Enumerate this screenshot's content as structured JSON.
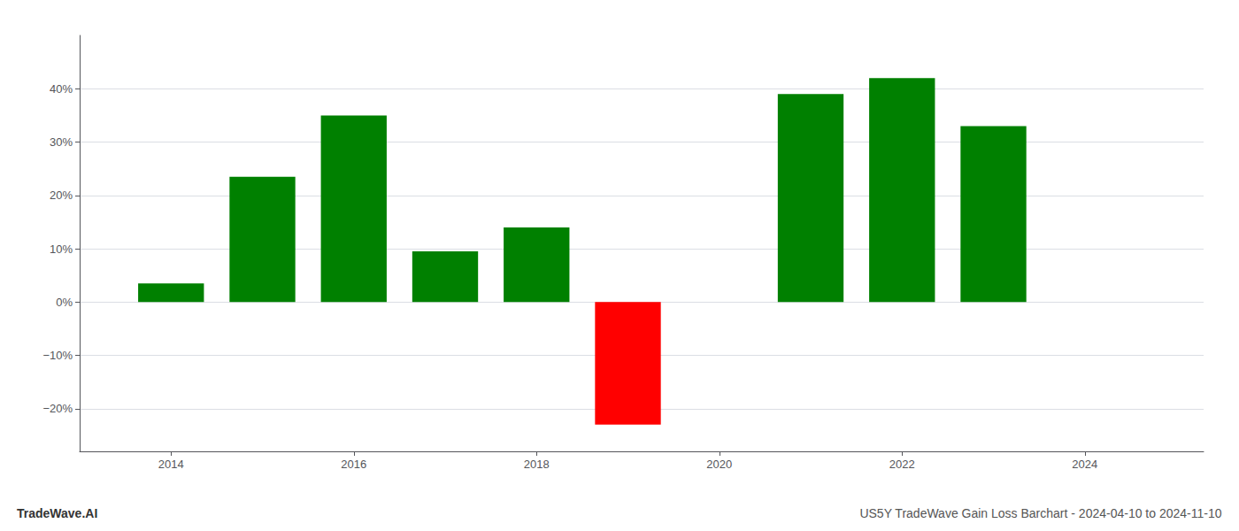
{
  "chart_data": {
    "type": "bar",
    "title": "TradeWave.AI",
    "subtitle": "US5Y TradeWave Gain Loss Barchart - 2024-04-10 to 2024-11-10",
    "x": [
      2014,
      2015,
      2016,
      2017,
      2018,
      2019,
      2021,
      2022,
      2023
    ],
    "values": [
      3.5,
      23.5,
      35.0,
      9.5,
      14.0,
      -23.0,
      39.0,
      42.0,
      33.0
    ],
    "colors": [
      "#008000",
      "#008000",
      "#008000",
      "#008000",
      "#008000",
      "#ff0000",
      "#008000",
      "#008000",
      "#008000"
    ],
    "xlim": [
      2013.0,
      2025.3
    ],
    "xticks": [
      2014,
      2016,
      2018,
      2020,
      2022,
      2024
    ],
    "ylim": [
      -28,
      50
    ],
    "yticks": [
      {
        "value": -20,
        "label": "−20%"
      },
      {
        "value": -10,
        "label": "−10%"
      },
      {
        "value": 0,
        "label": "0%"
      },
      {
        "value": 10,
        "label": "10%"
      },
      {
        "value": 20,
        "label": "20%"
      },
      {
        "value": 30,
        "label": "30%"
      },
      {
        "value": 40,
        "label": "40%"
      }
    ],
    "grid": true
  }
}
